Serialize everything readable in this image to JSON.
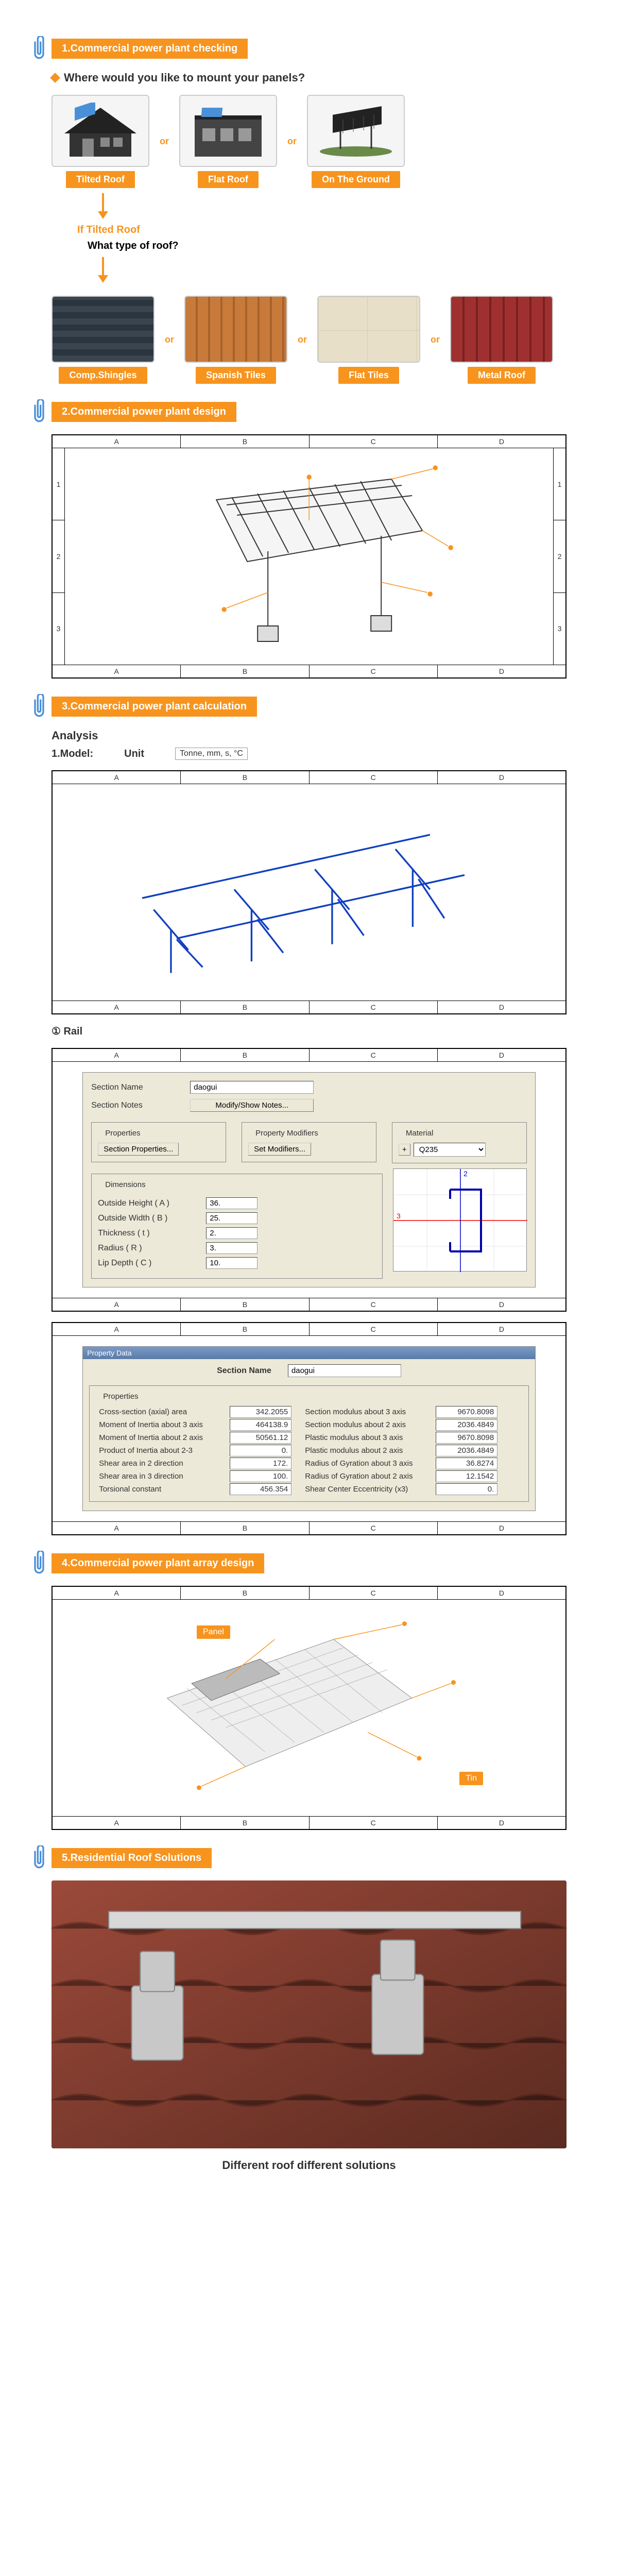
{
  "sections": {
    "s1": {
      "title": "1.Commercial power plant checking"
    },
    "s2": {
      "title": "2.Commercial power plant design"
    },
    "s3": {
      "title": "3.Commercial power plant calculation"
    },
    "s4": {
      "title": "4.Commercial power plant array design"
    },
    "s5": {
      "title": "5.Residential Roof Solutions"
    }
  },
  "q1": "Where would you like to mount your panels?",
  "mount_options": {
    "tilted": "Tilted Roof",
    "flat": "Flat Roof",
    "ground": "On The Ground"
  },
  "or": "or",
  "if_tilted": "If Tilted Roof",
  "what_type": "What type of roof?",
  "roof_types": {
    "shingle": "Comp.Shingles",
    "spanish": "Spanish Tiles",
    "flat": "Flat Tiles",
    "metal": "Metal Roof"
  },
  "coords": {
    "cols": [
      "A",
      "B",
      "C",
      "D"
    ],
    "rows": [
      "1",
      "2",
      "3"
    ]
  },
  "analysis": {
    "heading": "Analysis",
    "model_label": "1.Model:",
    "unit_label": "Unit",
    "unit_value": "Tonne, mm, s, °C"
  },
  "rail_header": "① Rail",
  "section_form": {
    "section_name_label": "Section Name",
    "section_name_value": "daogui",
    "section_notes_label": "Section Notes",
    "modify_notes_btn": "Modify/Show Notes...",
    "properties_group": "Properties",
    "section_props_btn": "Section Properties...",
    "modifiers_group": "Property Modifiers",
    "set_modifiers_btn": "Set Modifiers...",
    "material_group": "Material",
    "material_value": "Q235",
    "dimensions_group": "Dimensions",
    "dims": {
      "height_label": "Outside Height ( A )",
      "height_val": "36.",
      "width_label": "Outside Width ( B )",
      "width_val": "25.",
      "thick_label": "Thickness ( t )",
      "thick_val": "2.",
      "radius_label": "Radius ( R )",
      "radius_val": "3.",
      "lip_label": "Lip Depth ( C )",
      "lip_val": "10."
    }
  },
  "property_data": {
    "panel_title": "Property Data",
    "section_name_label": "Section Name",
    "section_name_value": "daogui",
    "properties_label": "Properties",
    "rows": [
      {
        "l1": "Cross-section (axial) area",
        "v1": "342.2055",
        "l2": "Section modulus about 3 axis",
        "v2": "9670.8098"
      },
      {
        "l1": "Moment of Inertia about 3 axis",
        "v1": "464138.9",
        "l2": "Section modulus about 2 axis",
        "v2": "2036.4849"
      },
      {
        "l1": "Moment of Inertia about 2 axis",
        "v1": "50561.12",
        "l2": "Plastic modulus about 3 axis",
        "v2": "9670.8098"
      },
      {
        "l1": "Product of Inertia about 2-3",
        "v1": "0.",
        "l2": "Plastic modulus about 2 axis",
        "v2": "2036.4849"
      },
      {
        "l1": "Shear area in 2 direction",
        "v1": "172.",
        "l2": "Radius of Gyration about 3 axis",
        "v2": "36.8274"
      },
      {
        "l1": "Shear area in 3 direction",
        "v1": "100.",
        "l2": "Radius of Gyration about 2 axis",
        "v2": "12.1542"
      },
      {
        "l1": "Torsional constant",
        "v1": "456.354",
        "l2": "Shear Center Eccentricity (x3)",
        "v2": "0."
      }
    ]
  },
  "callouts": {
    "panel": "Panel",
    "tin": "Tin"
  },
  "caption": "Different roof different solutions"
}
